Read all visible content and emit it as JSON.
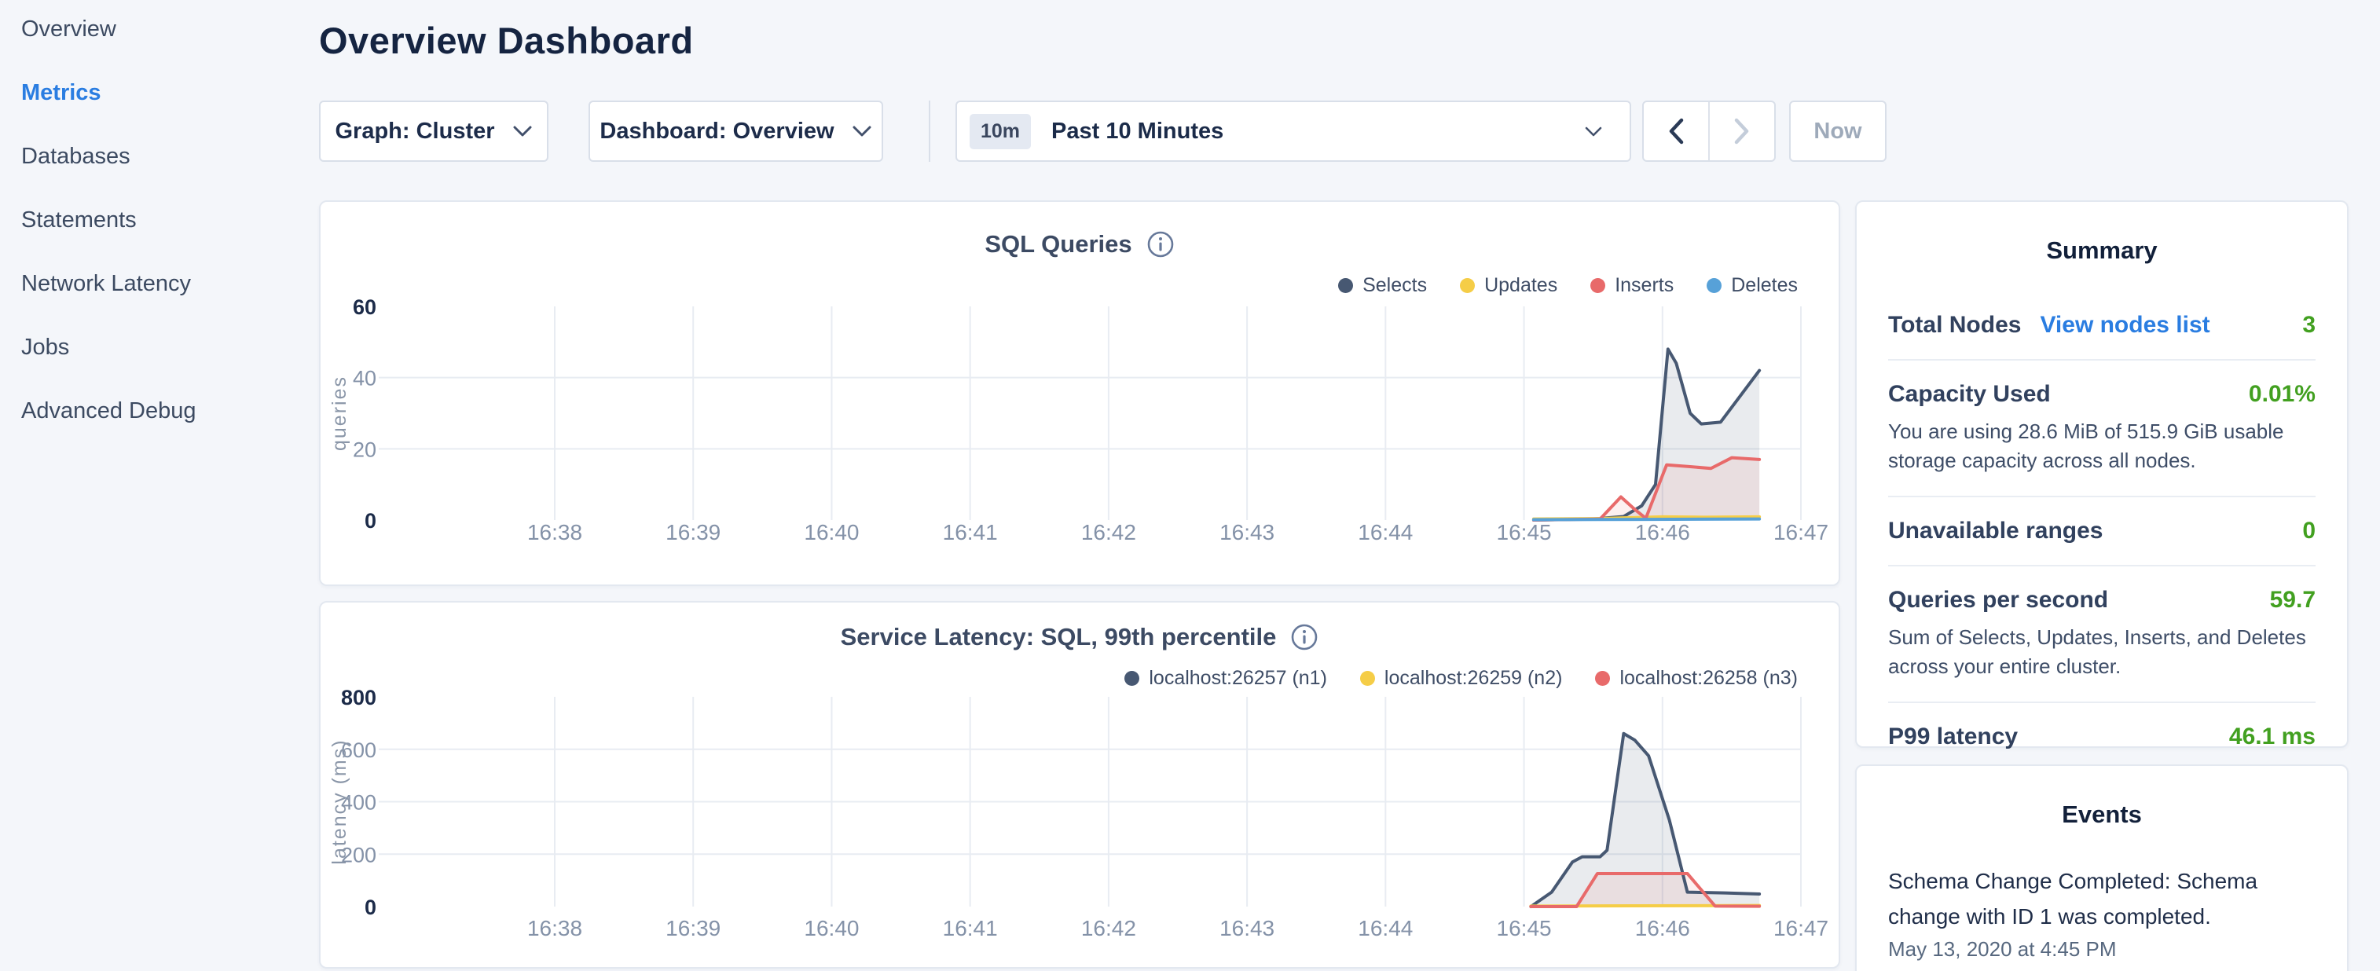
{
  "page": {
    "title": "Overview Dashboard"
  },
  "sidebar": {
    "items": [
      {
        "label": "Overview",
        "active": false
      },
      {
        "label": "Metrics",
        "active": true
      },
      {
        "label": "Databases",
        "active": false
      },
      {
        "label": "Statements",
        "active": false
      },
      {
        "label": "Network Latency",
        "active": false
      },
      {
        "label": "Jobs",
        "active": false
      },
      {
        "label": "Advanced Debug",
        "active": false
      }
    ]
  },
  "toolbar": {
    "graph_dropdown_label": "Graph: Cluster",
    "dashboard_dropdown_label": "Dashboard: Overview",
    "time_badge": "10m",
    "time_label": "Past 10 Minutes",
    "now_button": "Now"
  },
  "ui_colors": {
    "accent_blue": "#2a7de1",
    "value_green": "#42a020",
    "series_navy": "#475872",
    "series_yellow": "#f5cd47",
    "series_red": "#e86a6a",
    "series_blue": "#57a1d8"
  },
  "chart_data": [
    {
      "type": "area",
      "title": "SQL Queries",
      "ylabel": "queries",
      "ylim": [
        0,
        60
      ],
      "yticks": [
        0,
        20,
        40,
        60
      ],
      "x_ticks": [
        "16:38",
        "16:39",
        "16:40",
        "16:41",
        "16:42",
        "16:43",
        "16:44",
        "16:45",
        "16:46",
        "16:47"
      ],
      "x_unit": "minutes after 16:38",
      "grid": true,
      "legend_position": "top-right",
      "series": [
        {
          "name": "Selects",
          "color": "#475872",
          "fill": "rgba(71,88,114,0.12)",
          "points": [
            [
              7.07,
              0
            ],
            [
              7.5,
              0.3
            ],
            [
              7.72,
              1
            ],
            [
              7.85,
              4
            ],
            [
              7.95,
              10
            ],
            [
              8.04,
              48
            ],
            [
              8.1,
              44
            ],
            [
              8.2,
              30
            ],
            [
              8.28,
              27
            ],
            [
              8.42,
              27.5
            ],
            [
              8.7,
              42
            ]
          ]
        },
        {
          "name": "Updates",
          "color": "#f5cd47",
          "fill": null,
          "points": [
            [
              7.07,
              0.3
            ],
            [
              7.5,
              0.4
            ],
            [
              8.0,
              0.9
            ],
            [
              8.3,
              0.8
            ],
            [
              8.7,
              0.9
            ]
          ]
        },
        {
          "name": "Inserts",
          "color": "#e86a6a",
          "fill": "rgba(232,106,106,0.10)",
          "points": [
            [
              7.07,
              0
            ],
            [
              7.55,
              0.3
            ],
            [
              7.7,
              6.5
            ],
            [
              7.8,
              3
            ],
            [
              7.88,
              0.5
            ],
            [
              8.03,
              15.5
            ],
            [
              8.2,
              15
            ],
            [
              8.35,
              14.5
            ],
            [
              8.5,
              17.5
            ],
            [
              8.7,
              17
            ]
          ]
        },
        {
          "name": "Deletes",
          "color": "#57a1d8",
          "fill": null,
          "points": [
            [
              7.07,
              0.1
            ],
            [
              7.9,
              0.2
            ],
            [
              8.7,
              0.3
            ]
          ]
        }
      ]
    },
    {
      "type": "area",
      "title": "Service Latency: SQL, 99th percentile",
      "ylabel": "latency (ms)",
      "ylim": [
        0,
        800
      ],
      "yticks": [
        0,
        200,
        400,
        600,
        800
      ],
      "x_ticks": [
        "16:38",
        "16:39",
        "16:40",
        "16:41",
        "16:42",
        "16:43",
        "16:44",
        "16:45",
        "16:46",
        "16:47"
      ],
      "x_unit": "minutes after 16:38",
      "grid": true,
      "legend_position": "top-right",
      "series": [
        {
          "name": "localhost:26257 (n1)",
          "color": "#475872",
          "fill": "rgba(71,88,114,0.12)",
          "points": [
            [
              7.05,
              0
            ],
            [
              7.2,
              55
            ],
            [
              7.35,
              170
            ],
            [
              7.42,
              190
            ],
            [
              7.55,
              190
            ],
            [
              7.6,
              215
            ],
            [
              7.72,
              660
            ],
            [
              7.8,
              635
            ],
            [
              7.9,
              575
            ],
            [
              8.05,
              330
            ],
            [
              8.18,
              55
            ],
            [
              8.45,
              52
            ],
            [
              8.7,
              48
            ]
          ]
        },
        {
          "name": "localhost:26259 (n2)",
          "color": "#f5cd47",
          "fill": null,
          "points": [
            [
              7.05,
              2
            ],
            [
              7.8,
              3
            ],
            [
              8.7,
              4
            ]
          ]
        },
        {
          "name": "localhost:26258 (n3)",
          "color": "#e86a6a",
          "fill": "rgba(232,106,106,0.10)",
          "points": [
            [
              7.05,
              0
            ],
            [
              7.38,
              0
            ],
            [
              7.53,
              126
            ],
            [
              8.18,
              126
            ],
            [
              8.38,
              2
            ],
            [
              8.7,
              1
            ]
          ]
        }
      ]
    }
  ],
  "summary": {
    "title": "Summary",
    "rows": [
      {
        "label": "Total Nodes",
        "link": "View nodes list",
        "value": "3"
      },
      {
        "label": "Capacity Used",
        "value": "0.01%",
        "subtext": "You are using 28.6 MiB of 515.9 GiB usable storage capacity across all nodes."
      },
      {
        "label": "Unavailable ranges",
        "value": "0"
      },
      {
        "label": "Queries per second",
        "value": "59.7",
        "subtext": "Sum of Selects, Updates, Inserts, and Deletes across your entire cluster."
      },
      {
        "label": "P99 latency",
        "value": "46.1 ms"
      }
    ]
  },
  "events": {
    "title": "Events",
    "items": [
      {
        "text": "Schema Change Completed: Schema change with ID 1 was completed.",
        "timestamp": "May 13, 2020 at 4:45 PM"
      }
    ]
  }
}
